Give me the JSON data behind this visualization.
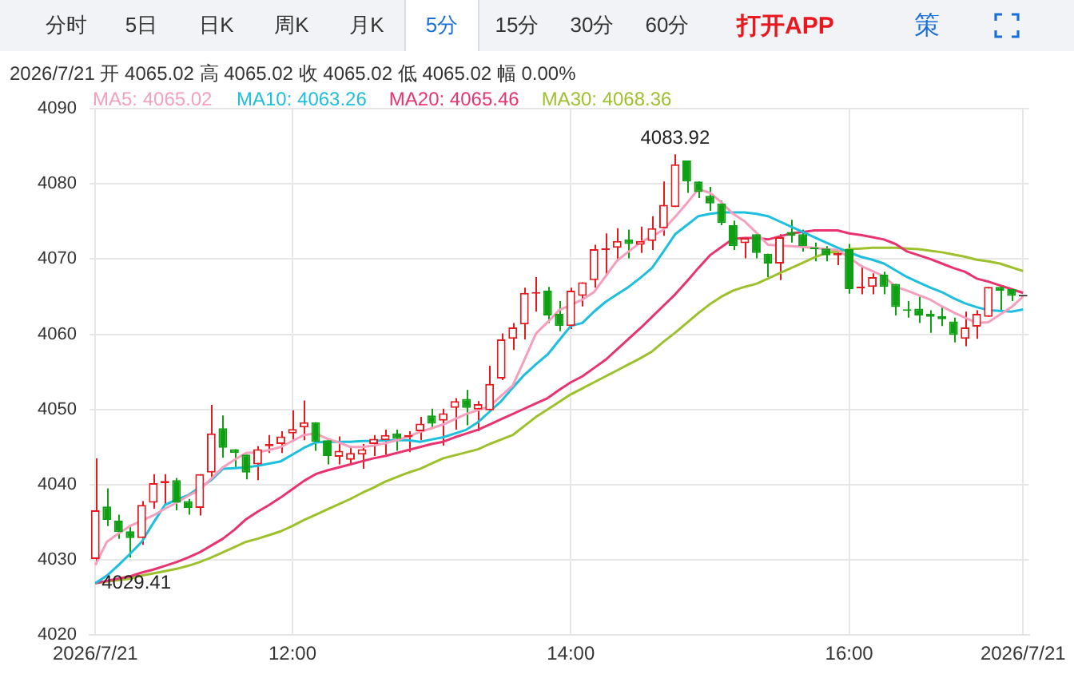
{
  "chart_data": {
    "type": "candlestick",
    "subtitle": "2026/7/21 开 4065.02 高 4065.02 收 4065.02 低 4065.02 幅 0.00%",
    "annotations": [
      "分时",
      "5日",
      "日K",
      "周K",
      "月K",
      "5分",
      "15分",
      "30分",
      "60分",
      "打开APP",
      "策",
      {
        "text": "4083.92",
        "y": 4083.92
      },
      "4029.41"
    ],
    "categories": [
      "2026/7/21",
      null,
      null,
      null,
      null,
      null,
      null,
      null,
      null,
      null,
      null,
      null,
      null,
      null,
      null,
      null,
      null,
      "12:00",
      null,
      null,
      null,
      null,
      null,
      null,
      null,
      null,
      null,
      null,
      null,
      null,
      null,
      null,
      null,
      null,
      null,
      null,
      null,
      null,
      null,
      null,
      null,
      "14:00",
      null,
      null,
      null,
      null,
      null,
      null,
      null,
      null,
      null,
      null,
      null,
      null,
      null,
      null,
      null,
      null,
      null,
      null,
      null,
      null,
      null,
      null,
      null,
      "16:00",
      null,
      null,
      null,
      null,
      null,
      null,
      null,
      null,
      null,
      null,
      null,
      null,
      null,
      null,
      "2026/7/21"
    ],
    "ohlc": [
      [
        4030.1,
        4043.5,
        4029.41,
        4036.6
      ],
      [
        4037.1,
        4039.5,
        4034.5,
        4035.3
      ],
      [
        4035.2,
        4036.0,
        4032.8,
        4033.7
      ],
      [
        4033.8,
        4034.6,
        4030.3,
        4032.9
      ],
      [
        4032.9,
        4037.8,
        4032.0,
        4037.3
      ],
      [
        4037.6,
        4041.4,
        4036.8,
        4040.2
      ],
      [
        4040.2,
        4041.4,
        4037.3,
        4040.5
      ],
      [
        4040.6,
        4040.9,
        4036.6,
        4037.6
      ],
      [
        4037.8,
        4038.1,
        4036.0,
        4036.9
      ],
      [
        4036.9,
        4041.4,
        4035.9,
        4041.4
      ],
      [
        4041.6,
        4050.6,
        4040.7,
        4046.8
      ],
      [
        4047.5,
        4049.2,
        4043.6,
        4044.9
      ],
      [
        4044.7,
        4044.7,
        4042.1,
        4044.2
      ],
      [
        4044.0,
        4044.0,
        4040.7,
        4041.6
      ],
      [
        4042.7,
        4045.1,
        4040.6,
        4044.7
      ],
      [
        4045.1,
        4046.6,
        4044.2,
        4045.4
      ],
      [
        4045.4,
        4047.1,
        4044.2,
        4046.4
      ],
      [
        4046.8,
        4049.9,
        4045.7,
        4047.4
      ],
      [
        4047.6,
        4051.2,
        4045.9,
        4048.3
      ],
      [
        4048.3,
        4048.3,
        4044.5,
        4045.7
      ],
      [
        4045.9,
        4046.1,
        4042.7,
        4043.8
      ],
      [
        4043.7,
        4046.4,
        4042.7,
        4044.5
      ],
      [
        4043.3,
        4044.9,
        4042.7,
        4044.2
      ],
      [
        4044.0,
        4045.4,
        4042.1,
        4044.7
      ],
      [
        4045.4,
        4046.6,
        4043.8,
        4046.1
      ],
      [
        4045.9,
        4047.3,
        4044.0,
        4046.6
      ],
      [
        4046.8,
        4047.3,
        4044.5,
        4046.1
      ],
      [
        4046.3,
        4047.1,
        4044.3,
        4046.6
      ],
      [
        4047.1,
        4049.0,
        4045.9,
        4048.1
      ],
      [
        4049.2,
        4050.1,
        4047.4,
        4048.1
      ],
      [
        4048.5,
        4050.1,
        4045.2,
        4049.5
      ],
      [
        4050.2,
        4051.5,
        4047.3,
        4051.1
      ],
      [
        4051.4,
        4052.6,
        4047.9,
        4050.2
      ],
      [
        4050.0,
        4051.1,
        4047.1,
        4050.7
      ],
      [
        4049.9,
        4055.8,
        4049.7,
        4053.4
      ],
      [
        4054.1,
        4060.1,
        4053.9,
        4059.3
      ],
      [
        4059.4,
        4061.5,
        4057.9,
        4060.9
      ],
      [
        4061.3,
        4066.2,
        4059.3,
        4065.5
      ],
      [
        4065.4,
        4067.6,
        4063.0,
        4065.6
      ],
      [
        4065.8,
        4066.3,
        4061.5,
        4062.5
      ],
      [
        4062.7,
        4064.4,
        4060.4,
        4061.1
      ],
      [
        4061.1,
        4066.2,
        4060.7,
        4065.8
      ],
      [
        4065.1,
        4066.9,
        4063.7,
        4066.9
      ],
      [
        4067.2,
        4071.9,
        4066.2,
        4071.3
      ],
      [
        4071.2,
        4073.4,
        4067.7,
        4071.4
      ],
      [
        4071.5,
        4074.1,
        4069.7,
        4072.4
      ],
      [
        4072.6,
        4073.9,
        4070.1,
        4072.0
      ],
      [
        4071.9,
        4074.3,
        4070.8,
        4072.4
      ],
      [
        4072.4,
        4075.7,
        4071.2,
        4074.1
      ],
      [
        4074.1,
        4080.3,
        4073.1,
        4077.2
      ],
      [
        4076.9,
        4083.92,
        4076.9,
        4082.6
      ],
      [
        4083.1,
        4083.1,
        4078.8,
        4080.3
      ],
      [
        4080.3,
        4080.3,
        4078.1,
        4078.9
      ],
      [
        4078.4,
        4079.6,
        4076.4,
        4077.4
      ],
      [
        4077.4,
        4077.8,
        4074.5,
        4074.8
      ],
      [
        4074.5,
        4075.1,
        4071.2,
        4071.7
      ],
      [
        4072.1,
        4072.8,
        4070.1,
        4072.8
      ],
      [
        4073.3,
        4073.3,
        4070.1,
        4070.8
      ],
      [
        4070.7,
        4070.7,
        4067.6,
        4069.4
      ],
      [
        4069.4,
        4073.3,
        4067.2,
        4072.9
      ],
      [
        4073.6,
        4075.2,
        4072.2,
        4073.1
      ],
      [
        4073.3,
        4073.9,
        4071.0,
        4071.7
      ],
      [
        4071.5,
        4072.2,
        4069.7,
        4071.3
      ],
      [
        4071.4,
        4071.7,
        4069.7,
        4070.5
      ],
      [
        4070.5,
        4071.2,
        4069.2,
        4070.8
      ],
      [
        4071.3,
        4072.0,
        4065.4,
        4066.0
      ],
      [
        4066.1,
        4069.1,
        4065.3,
        4066.3
      ],
      [
        4066.3,
        4068.1,
        4065.3,
        4067.6
      ],
      [
        4067.9,
        4068.3,
        4065.3,
        4066.3
      ],
      [
        4066.7,
        4066.7,
        4062.5,
        4063.6
      ],
      [
        4063.3,
        4064.4,
        4062.2,
        4063.1
      ],
      [
        4063.4,
        4065.0,
        4061.5,
        4062.5
      ],
      [
        4062.7,
        4063.2,
        4060.2,
        4062.3
      ],
      [
        4062.4,
        4063.7,
        4061.1,
        4062.0
      ],
      [
        4061.7,
        4062.2,
        4058.9,
        4059.9
      ],
      [
        4059.4,
        4063.0,
        4058.4,
        4060.9
      ],
      [
        4061.0,
        4063.2,
        4059.4,
        4062.7
      ],
      [
        4062.3,
        4066.3,
        4062.3,
        4066.3
      ],
      [
        4066.3,
        4066.3,
        4063.2,
        4065.8
      ],
      [
        4066.0,
        4066.0,
        4064.4,
        4065.1
      ],
      [
        4065.02,
        4065.02,
        4065.02,
        4065.02
      ]
    ],
    "colors": [
      "#e8191e",
      "#0e9f12",
      "#0e9f12",
      "#0e9f12",
      "#e8191e",
      "#e8191e",
      "#e8191e",
      "#0e9f12",
      "#0e9f12",
      "#e8191e",
      "#e8191e",
      "#0e9f12",
      "#0e9f12",
      "#0e9f12",
      "#e8191e",
      "#e8191e",
      "#e8191e",
      "#e8191e",
      "#e8191e",
      "#0e9f12",
      "#0e9f12",
      "#e8191e",
      "#e8191e",
      "#e8191e",
      "#e8191e",
      "#e8191e",
      "#0e9f12",
      "#e8191e",
      "#e8191e",
      "#0e9f12",
      "#e8191e",
      "#e8191e",
      "#0e9f12",
      "#e8191e",
      "#e8191e",
      "#e8191e",
      "#e8191e",
      "#e8191e",
      "#e8191e",
      "#0e9f12",
      "#0e9f12",
      "#e8191e",
      "#e8191e",
      "#e8191e",
      "#e8191e",
      "#e8191e",
      "#0e9f12",
      "#e8191e",
      "#e8191e",
      "#e8191e",
      "#e8191e",
      "#0e9f12",
      "#0e9f12",
      "#0e9f12",
      "#0e9f12",
      "#0e9f12",
      "#e8191e",
      "#0e9f12",
      "#0e9f12",
      "#e8191e",
      "#0e9f12",
      "#0e9f12",
      "#0e9f12",
      "#0e9f12",
      "#e8191e",
      "#0e9f12",
      "#e8191e",
      "#e8191e",
      "#0e9f12",
      "#0e9f12",
      "#0e9f12",
      "#0e9f12",
      "#0e9f12",
      "#0e9f12",
      "#0e9f12",
      "#e8191e",
      "#e8191e",
      "#e8191e",
      "#0e9f12",
      "#0e9f12",
      "#222222"
    ],
    "series": [
      {
        "name": "MA5: 4065.02",
        "type": "line",
        "color": "#f59fbd",
        "values": [
          4029.3,
          4032.4,
          4033.5,
          4034.5,
          4035.2,
          4035.9,
          4036.8,
          4037.6,
          4038.5,
          4039.3,
          4040.8,
          4042.3,
          4043.3,
          4044.2,
          4044.3,
          4044.6,
          4045.0,
          4045.8,
          4046.6,
          4046.8,
          4046.1,
          4045.6,
          4045.0,
          4045.0,
          4045.2,
          4045.5,
          4045.9,
          4046.4,
          4047.0,
          4047.5,
          4048.0,
          4048.7,
          4049.4,
          4049.9,
          4050.4,
          4051.8,
          4053.2,
          4056.6,
          4060.1,
          4061.6,
          4063.2,
          4063.9,
          4064.6,
          4065.6,
          4067.7,
          4069.8,
          4071.0,
          4072.2,
          4073.0,
          4073.9,
          4075.6,
          4077.4,
          4079.3,
          4078.8,
          4077.5,
          4076.0,
          4075.0,
          4073.5,
          4071.9,
          4071.8,
          4071.7,
          4071.6,
          4071.5,
          4071.3,
          4071.2,
          4070.2,
          4069.1,
          4068.4,
          4067.7,
          4066.3,
          4065.8,
          4065.2,
          4064.6,
          4063.7,
          4062.9,
          4062.2,
          4061.5,
          4061.6,
          4062.6,
          4063.6,
          4065.0
        ]
      },
      {
        "name": "MA10: 4063.26",
        "type": "line",
        "color": "#1cbfdd",
        "values": [
          4026.9,
          4027.9,
          4029.3,
          4030.8,
          4032.4,
          4034.9,
          4037.3,
          4038.0,
          4038.6,
          4039.6,
          4040.6,
          4042.1,
          4042.2,
          4042.3,
          4042.5,
          4042.8,
          4043.1,
          4044.0,
          4044.9,
          4045.6,
          4045.7,
          4045.7,
          4045.7,
          4045.8,
          4045.8,
          4045.9,
          4045.9,
          4045.9,
          4045.7,
          4046.0,
          4046.3,
          4046.8,
          4047.3,
          4048.3,
          4049.7,
          4051.1,
          4052.9,
          4054.6,
          4056.0,
          4057.3,
          4059.2,
          4061.1,
          4061.5,
          4063.0,
          4064.3,
          4065.3,
          4066.3,
          4067.5,
          4068.8,
          4071.0,
          4073.3,
          4074.5,
          4075.7,
          4076.0,
          4076.2,
          4076.2,
          4076.2,
          4076.0,
          4075.7,
          4075.0,
          4074.3,
          4073.6,
          4072.9,
          4072.2,
          4071.5,
          4070.9,
          4070.3,
          4069.9,
          4069.4,
          4068.5,
          4067.6,
          4066.9,
          4066.2,
          4065.6,
          4064.8,
          4064.1,
          4063.6,
          4063.2,
          4063.1,
          4063.0,
          4063.3
        ]
      },
      {
        "name": "MA20: 4065.46",
        "type": "line",
        "color": "#e8336f",
        "values": [
          4026.9,
          4027.2,
          4027.5,
          4027.8,
          4028.3,
          4028.7,
          4029.2,
          4029.7,
          4030.3,
          4031.0,
          4031.9,
          4032.8,
          4034.0,
          4035.4,
          4036.4,
          4037.3,
          4038.3,
          4039.4,
          4040.5,
          4041.4,
          4041.9,
          4042.3,
          4042.7,
          4043.1,
          4043.5,
          4043.8,
          4044.2,
          4044.6,
          4045.0,
          4045.4,
          4045.7,
          4046.3,
          4046.8,
          4047.3,
          4048.0,
          4048.7,
          4049.4,
          4050.1,
          4050.8,
          4051.5,
          4052.6,
          4053.6,
          4054.4,
          4055.5,
          4056.6,
          4058.0,
          4059.4,
          4060.8,
          4062.3,
          4063.8,
          4065.3,
          4067.0,
          4068.8,
          4070.5,
          4071.6,
          4072.7,
          4072.8,
          4072.8,
          4072.6,
          4073.0,
          4073.4,
          4073.6,
          4073.8,
          4073.8,
          4073.8,
          4073.4,
          4073.2,
          4072.9,
          4072.6,
          4072.0,
          4071.0,
          4070.5,
          4070.0,
          4069.4,
          4068.8,
          4068.3,
          4067.4,
          4067.0,
          4066.5,
          4066.0,
          4065.5
        ]
      },
      {
        "name": "MA30: 4068.36",
        "type": "line",
        "color": "#9dc12c",
        "values": [
          4026.9,
          4027.1,
          4027.3,
          4027.5,
          4027.9,
          4028.2,
          4028.5,
          4028.8,
          4029.2,
          4029.7,
          4030.3,
          4031.0,
          4031.7,
          4032.4,
          4032.8,
          4033.3,
          4033.8,
          4034.5,
          4035.3,
          4036.0,
          4036.7,
          4037.4,
          4038.1,
          4038.9,
          4039.6,
          4040.4,
          4041.0,
          4041.6,
          4042.1,
          4042.8,
          4043.5,
          4043.9,
          4044.3,
          4044.7,
          4045.4,
          4046.0,
          4046.6,
          4047.8,
          4049.0,
          4050.0,
          4051.0,
          4052.0,
          4052.8,
          4053.6,
          4054.4,
          4055.2,
          4056.0,
          4056.8,
          4057.7,
          4059.0,
          4060.2,
          4061.5,
          4062.8,
          4064.0,
          4065.0,
          4065.8,
          4066.3,
          4066.7,
          4067.4,
          4068.1,
          4068.8,
          4069.5,
          4070.2,
          4070.8,
          4071.0,
          4071.3,
          4071.4,
          4071.5,
          4071.5,
          4071.5,
          4071.4,
          4071.3,
          4071.1,
          4070.9,
          4070.6,
          4070.3,
          4069.9,
          4069.7,
          4069.4,
          4068.9,
          4068.4
        ]
      }
    ],
    "ylim": [
      4020,
      4090
    ],
    "yticks": [
      4020,
      4030,
      4040,
      4050,
      4060,
      4070,
      4080,
      4090
    ],
    "grid": true,
    "marker": "none"
  }
}
